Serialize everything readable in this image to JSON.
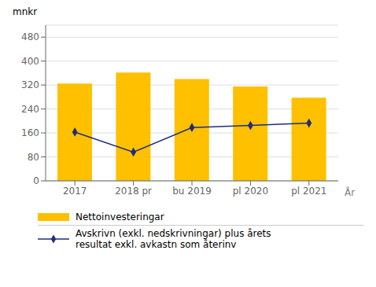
{
  "chart_data": {
    "type": "bar",
    "categories": [
      "2017",
      "2018 pr",
      "bu 2019",
      "pl 2020",
      "pl 2021"
    ],
    "series": [
      {
        "name": "Nettoinvesteringar",
        "type": "bar",
        "color": "#FFC000",
        "values": [
          325,
          362,
          340,
          315,
          278
        ]
      },
      {
        "name": "Avskrivn (exkl. nedskrivningar) plus årets\nresultat exkl. avkastn som återinv",
        "type": "line",
        "color": "#1F2D7B",
        "marker": "diamond",
        "values": [
          163,
          96,
          178,
          185,
          193
        ]
      }
    ],
    "xlabel": "År",
    "ylabel": "mnkr",
    "ylim": [
      0,
      520
    ],
    "yticks": [
      0,
      80,
      160,
      240,
      320,
      400,
      480
    ],
    "grid": true,
    "legend": "bottom"
  }
}
